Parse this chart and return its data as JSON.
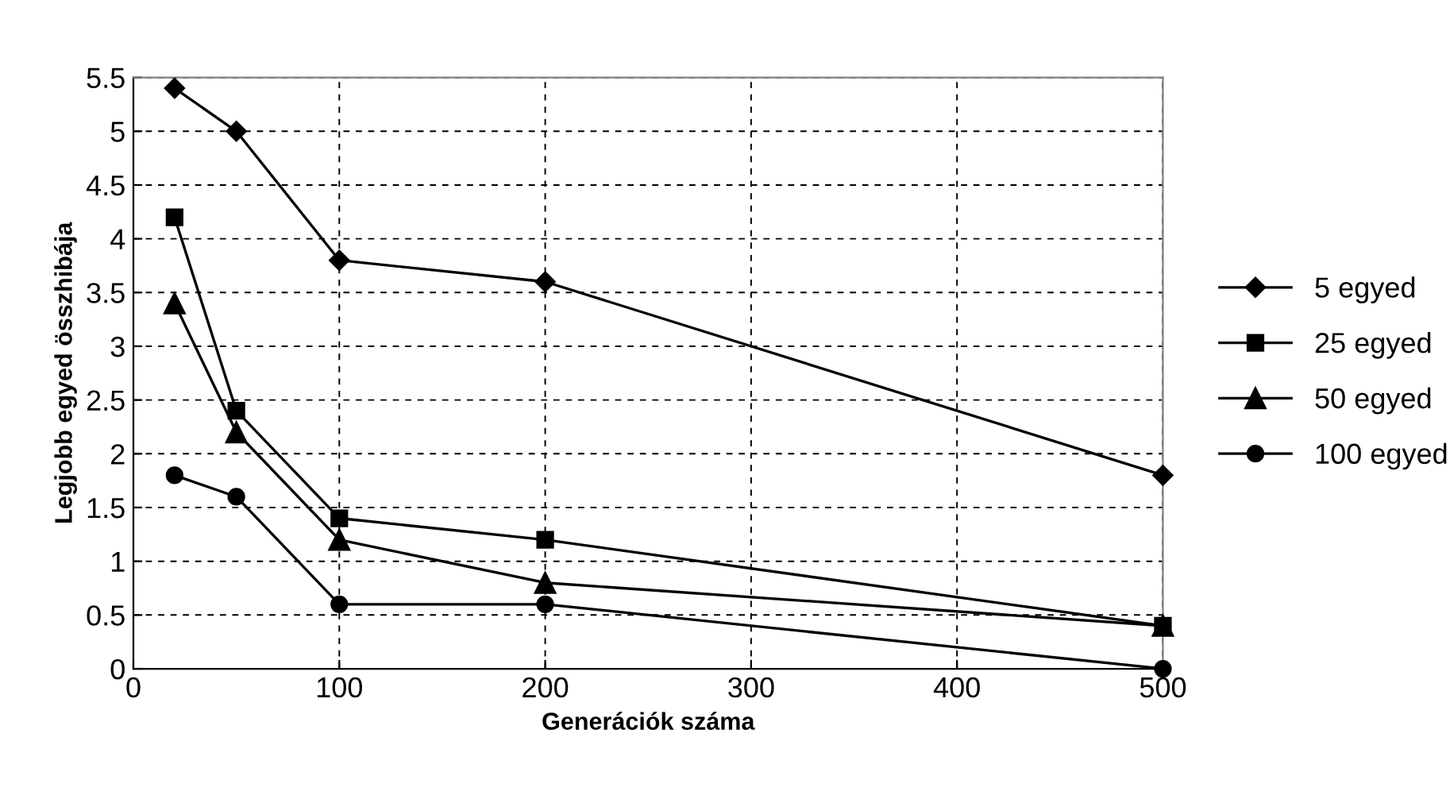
{
  "chart_data": {
    "type": "line",
    "xlabel": "Generációk száma",
    "ylabel": "Legjobb egyed összhibája",
    "x": [
      20,
      50,
      100,
      200,
      500
    ],
    "series": [
      {
        "name": "5 egyed",
        "color": "#000000",
        "marker": "diamond",
        "values": [
          5.4,
          5.0,
          3.8,
          3.6,
          1.8
        ]
      },
      {
        "name": "25 egyed",
        "color": "#000000",
        "marker": "square",
        "values": [
          4.2,
          2.4,
          1.4,
          1.2,
          0.4
        ]
      },
      {
        "name": "50 egyed",
        "color": "#000000",
        "marker": "triangle",
        "values": [
          3.4,
          2.2,
          1.2,
          0.8,
          0.4
        ]
      },
      {
        "name": "100 egyed",
        "color": "#000000",
        "marker": "circle",
        "values": [
          1.8,
          1.6,
          0.6,
          0.6,
          0.0
        ]
      }
    ],
    "xlim": [
      0,
      500
    ],
    "xticks": [
      0,
      100,
      200,
      300,
      400,
      500
    ],
    "ylim": [
      0,
      5.5
    ],
    "yticks": [
      0,
      0.5,
      1,
      1.5,
      2,
      2.5,
      3,
      3.5,
      4,
      4.5,
      5,
      5.5
    ],
    "grid": true,
    "line_style": "solid",
    "legend": "right"
  }
}
